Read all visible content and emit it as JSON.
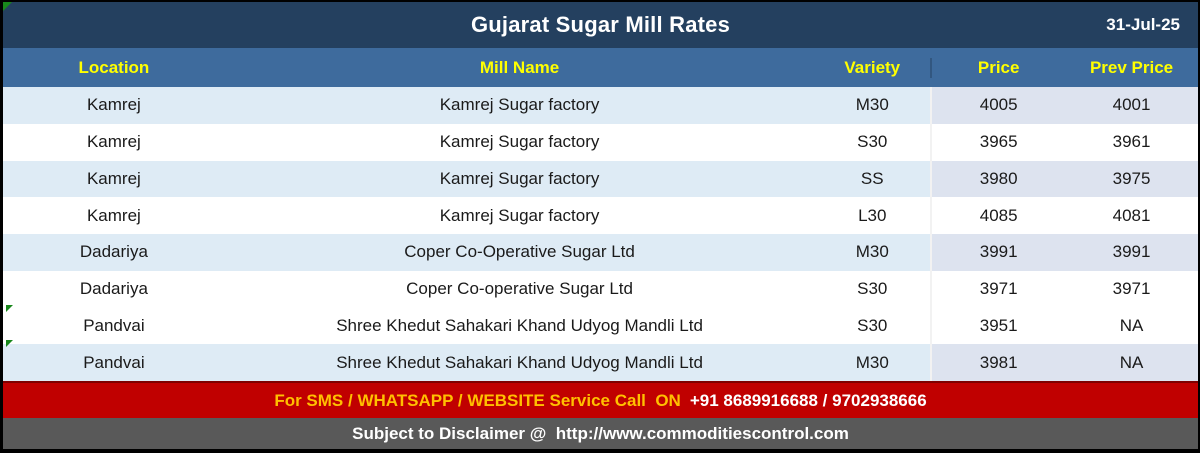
{
  "title_bar": {
    "title": "Gujarat Sugar Mill Rates",
    "date": "31-Jul-25"
  },
  "chart_data": {
    "type": "table",
    "title": "Gujarat Sugar Mill Rates",
    "date": "31-Jul-25",
    "columns": [
      "Location",
      "Mill Name",
      "Variety",
      "Price",
      "Prev Price"
    ],
    "rows": [
      [
        "Kamrej",
        "Kamrej Sugar factory",
        "M30",
        "4005",
        "4001"
      ],
      [
        "Kamrej",
        "Kamrej Sugar factory",
        "S30",
        "3965",
        "3961"
      ],
      [
        "Kamrej",
        "Kamrej Sugar factory",
        "SS",
        "3980",
        "3975"
      ],
      [
        "Kamrej",
        "Kamrej Sugar factory",
        "L30",
        "4085",
        "4081"
      ],
      [
        "Dadariya",
        "Coper Co-Operative Sugar Ltd",
        "M30",
        "3991",
        "3991"
      ],
      [
        "Dadariya",
        "Coper Co-operative Sugar Ltd",
        "S30",
        "3971",
        "3971"
      ],
      [
        "Pandvai",
        "Shree Khedut Sahakari Khand Udyog Mandli Ltd",
        "S30",
        "3951",
        "NA"
      ],
      [
        "Pandvai",
        "Shree Khedut Sahakari Khand Udyog Mandli Ltd",
        "M30",
        "3981",
        "NA"
      ]
    ],
    "row_shading": [
      "tint",
      "white",
      "tint",
      "white",
      "tint",
      "white",
      "white",
      "tint"
    ]
  },
  "service_bar": {
    "label": "For SMS / WHATSAPP / WEBSITE Service Call  ON",
    "numbers": "+91 8689916688 / 9702938666"
  },
  "disclaimer_bar": {
    "text": "Subject to Disclaimer @  http://www.commoditiescontrol.com"
  },
  "colors": {
    "title_bar_bg": "#24405F",
    "header_row_bg": "#3E6B9D",
    "header_text": "#FFFF00",
    "row_tint": "#DEEBF5",
    "price_column_tint": "#DDE3EF",
    "service_bar_bg": "#C00000",
    "service_label_text": "#FFC000",
    "disclaimer_bar_bg": "#595959",
    "artifact_green": "#18871B"
  }
}
